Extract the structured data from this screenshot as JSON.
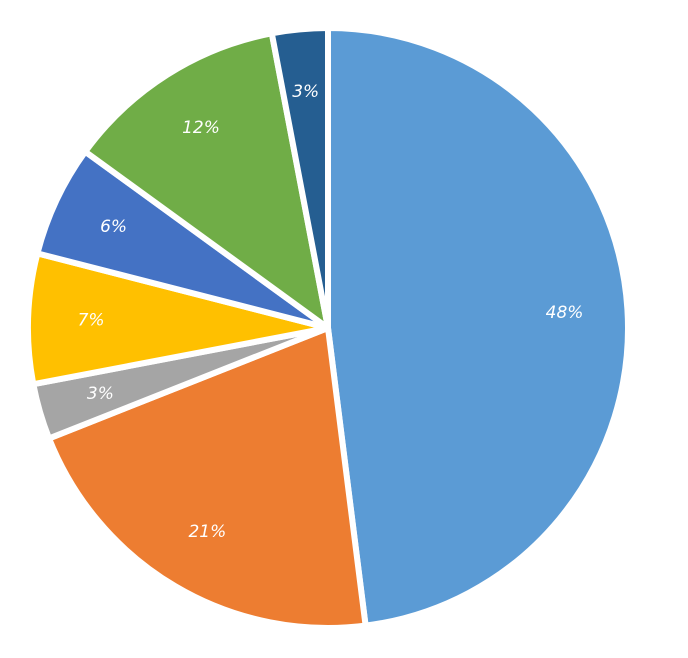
{
  "chart_data": {
    "type": "pie",
    "values": [
      48,
      21,
      3,
      7,
      6,
      12,
      3
    ],
    "value_labels": [
      "48%",
      "21%",
      "3%",
      "7%",
      "6%",
      "12%",
      "3%"
    ],
    "colors": [
      "#5b9bd5",
      "#ed7d31",
      "#a5a5a5",
      "#ffc000",
      "#4472c4",
      "#70ad47",
      "#255e91"
    ]
  }
}
